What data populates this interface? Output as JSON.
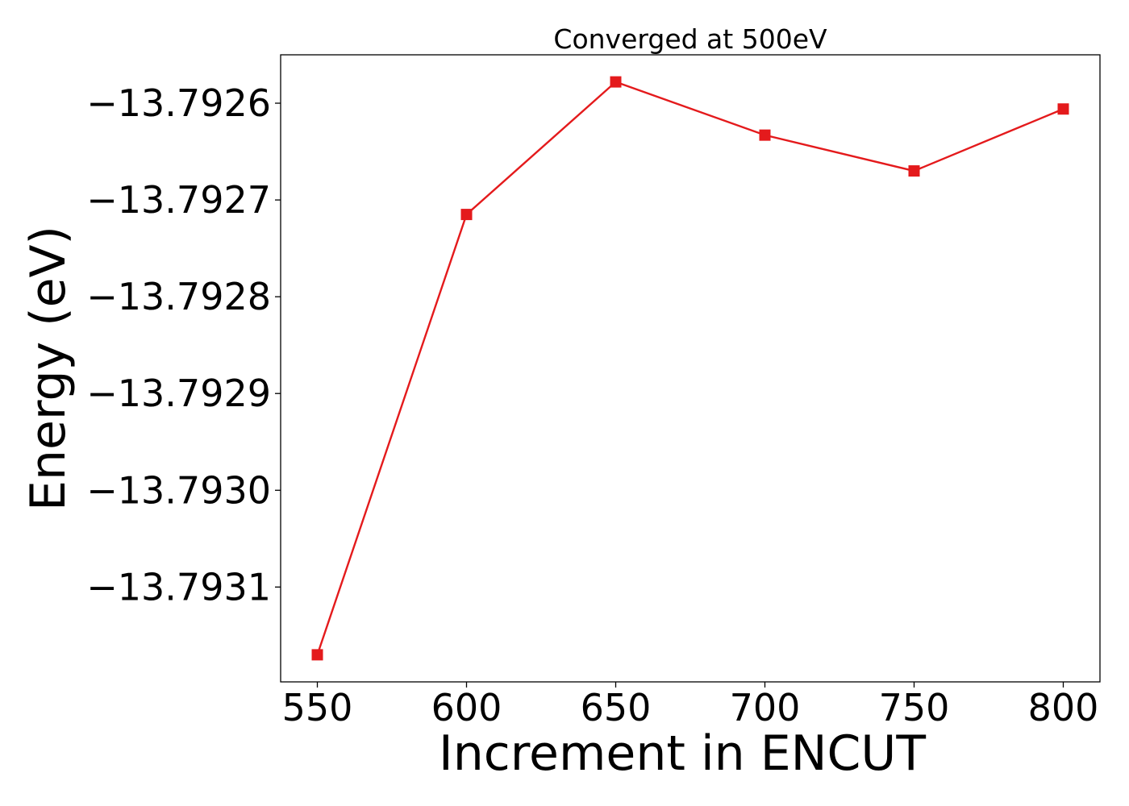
{
  "chart_data": {
    "type": "line",
    "title": "Converged at 500eV",
    "xlabel": "Increment in ENCUT",
    "ylabel": "Energy (eV)",
    "x": [
      550,
      600,
      650,
      700,
      750,
      800
    ],
    "series": [
      {
        "values": [
          -13.79317,
          -13.792715,
          -13.792578,
          -13.792633,
          -13.79267,
          -13.792606
        ],
        "color": "#e41a1c",
        "marker": "square"
      }
    ],
    "xticks": [
      550,
      600,
      650,
      700,
      750,
      800
    ],
    "xtick_labels": [
      "550",
      "600",
      "650",
      "700",
      "750",
      "800"
    ],
    "yticks": [
      -13.7926,
      -13.7927,
      -13.7928,
      -13.7929,
      -13.793,
      -13.7931
    ],
    "ytick_labels": [
      "−13.7926",
      "−13.7927",
      "−13.7928",
      "−13.7929",
      "−13.7930",
      "−13.7931"
    ],
    "xlim": [
      537.7,
      812.3
    ],
    "ylim": [
      -13.793198,
      -13.79255
    ],
    "grid": false,
    "legend": "none"
  }
}
